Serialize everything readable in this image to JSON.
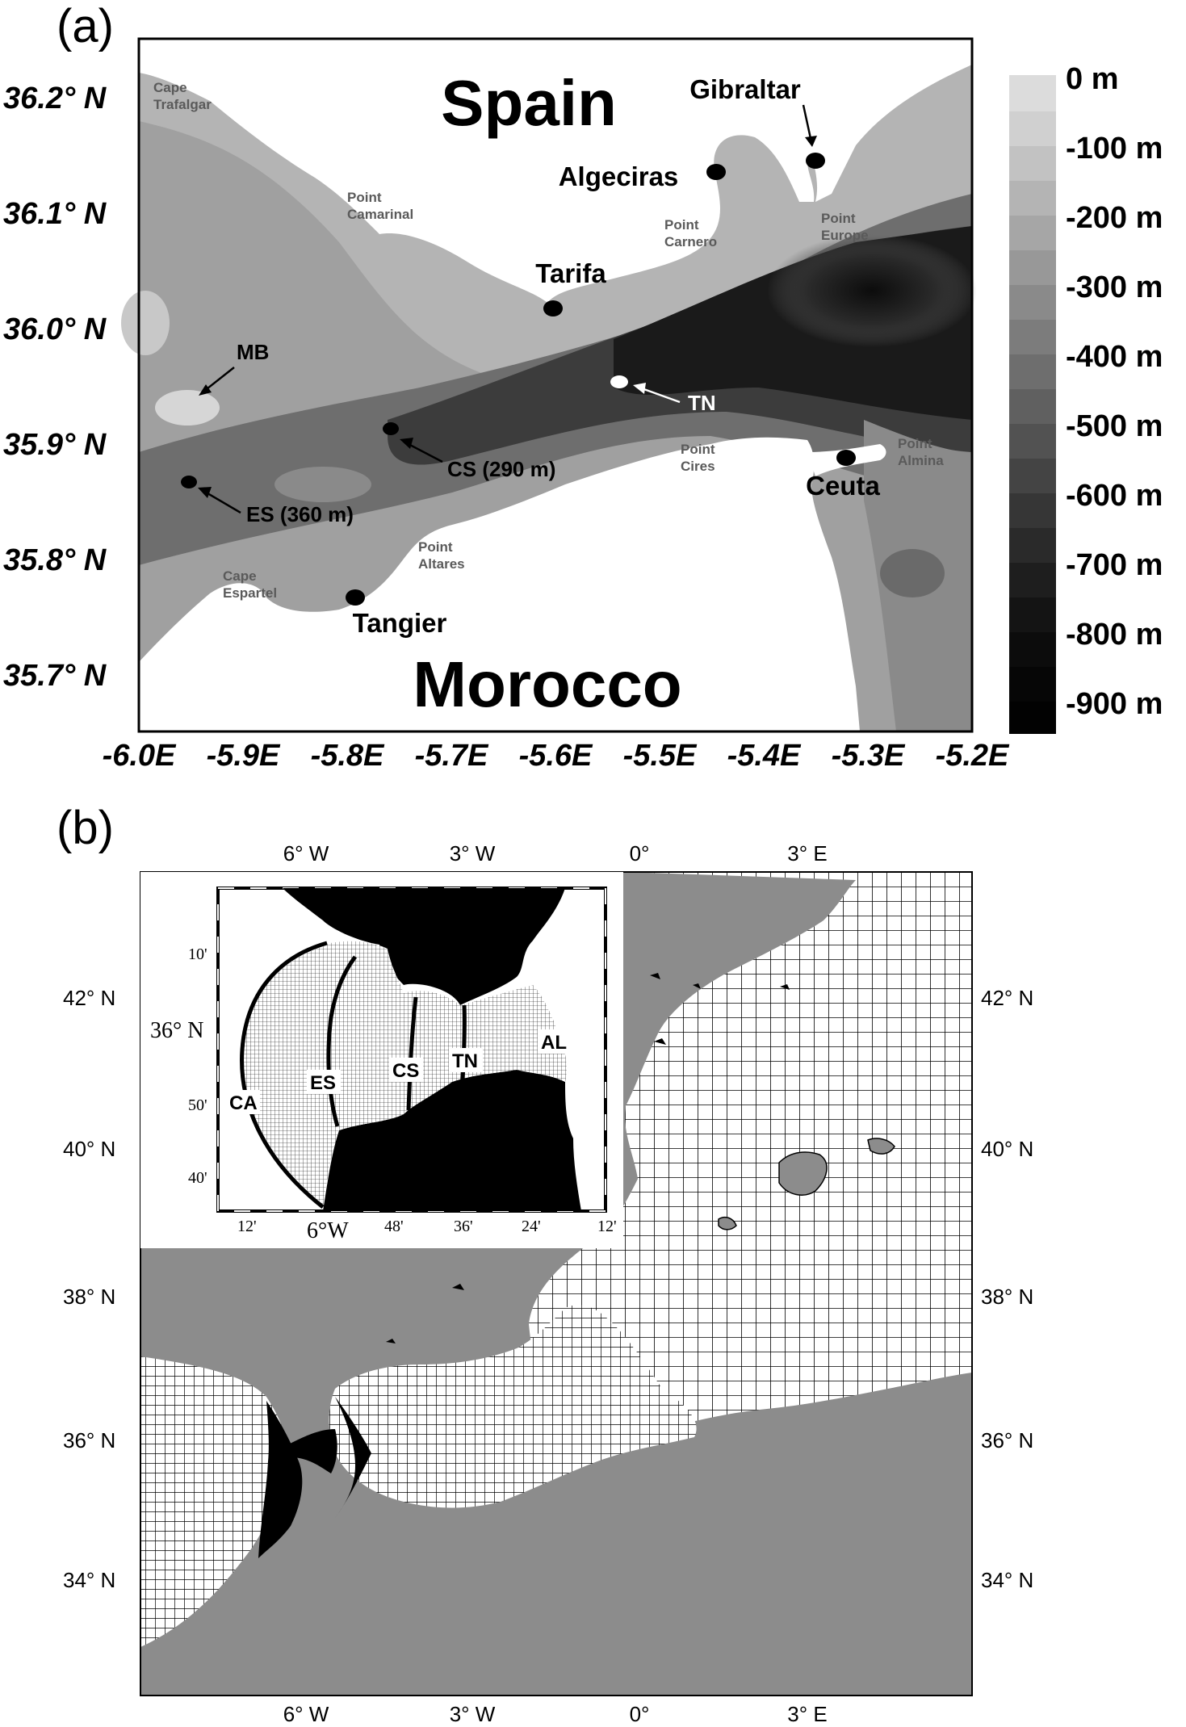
{
  "panel_a": {
    "label": "(a)",
    "lat_labels": [
      "36.2° N",
      "36.1° N",
      "36.0° N",
      "35.9° N",
      "35.8° N",
      "35.7° N"
    ],
    "lon_labels": [
      "-6.0E",
      "-5.9E",
      "-5.8E",
      "-5.7E",
      "-5.6E",
      "-5.5E",
      "-5.4E",
      "-5.3E",
      "-5.2E"
    ],
    "countries": {
      "north": "Spain",
      "south": "Morocco"
    },
    "cities": {
      "gibraltar": "Gibraltar",
      "algeciras": "Algeciras",
      "tarifa": "Tarifa",
      "ceuta": "Ceuta",
      "tangier": "Tangier"
    },
    "points": {
      "cape_trafalgar": [
        "Cape",
        "Trafalgar"
      ],
      "point_camarinal": [
        "Point",
        "Camarinal"
      ],
      "point_carnero": [
        "Point",
        "Carnero"
      ],
      "point_europe": [
        "Point",
        "Europe"
      ],
      "point_cires": [
        "Point",
        "Cires"
      ],
      "point_almina": [
        "Point",
        "Almina"
      ],
      "point_altares": [
        "Point",
        "Altares"
      ],
      "cape_espartel": [
        "Cape",
        "Espartel"
      ]
    },
    "stations": {
      "mb": "MB",
      "tn": "TN",
      "cs": "CS (290 m)",
      "es": "ES (360 m)"
    },
    "colorbar": {
      "labels": [
        "0 m",
        "-100 m",
        "-200 m",
        "-300 m",
        "-400 m",
        "-500 m",
        "-600 m",
        "-700 m",
        "-800 m",
        "-900 m"
      ],
      "top_color": "#dcdcdc",
      "bottom_color": "#050505"
    }
  },
  "panel_b": {
    "label": "(b)",
    "lon_labels": [
      "6° W",
      "3° W",
      "0°",
      "3° E"
    ],
    "lat_labels": [
      "42° N",
      "40° N",
      "38° N",
      "36° N",
      "34° N"
    ],
    "land_color": "#8c8c8c",
    "inset": {
      "lat_ticks": [
        "10'",
        "36° N",
        "50'",
        "40'"
      ],
      "lon_ticks": [
        "12'",
        "6°W",
        "48'",
        "36'",
        "24'",
        "12'"
      ],
      "section_labels": [
        "CA",
        "ES",
        "CS",
        "TN",
        "AL"
      ]
    }
  }
}
